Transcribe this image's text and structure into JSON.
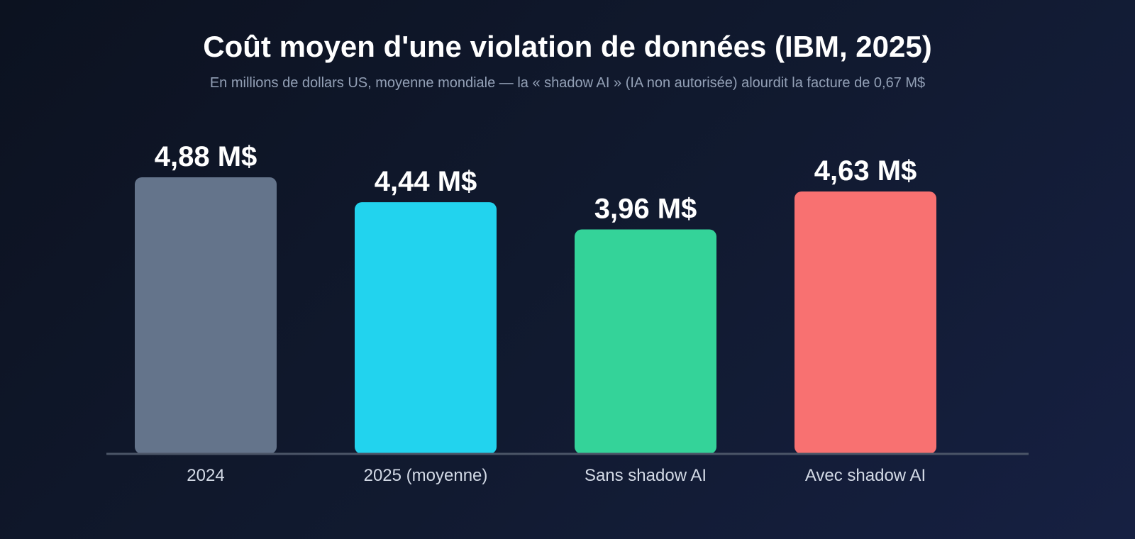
{
  "colors": {
    "axis": "#4b5567"
  },
  "chart_data": {
    "type": "bar",
    "title": "Coût moyen d'une violation de données (IBM, 2025)",
    "subtitle": "En millions de dollars US, moyenne mondiale — la « shadow AI » (IA non autorisée) alourdit la facture de 0,67 M$",
    "xlabel": "",
    "ylabel": "",
    "unit": "M$",
    "categories": [
      "2024",
      "2025 (moyenne)",
      "Sans shadow AI",
      "Avec shadow AI"
    ],
    "values": [
      4.88,
      4.44,
      3.96,
      4.63
    ],
    "value_labels": [
      "4,88 M$",
      "4,44 M$",
      "3,96 M$",
      "4,63 M$"
    ],
    "bar_colors": [
      "#64748b",
      "#22d3ee",
      "#34d399",
      "#f87171"
    ],
    "ylim": [
      0,
      4.88
    ],
    "grid": false,
    "legend": "none"
  }
}
